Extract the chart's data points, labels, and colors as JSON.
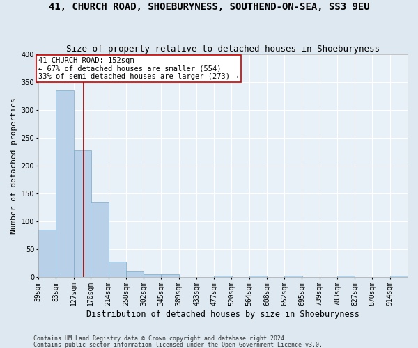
{
  "title": "41, CHURCH ROAD, SHOEBURYNESS, SOUTHEND-ON-SEA, SS3 9EU",
  "subtitle": "Size of property relative to detached houses in Shoeburyness",
  "xlabel": "Distribution of detached houses by size in Shoeburyness",
  "ylabel": "Number of detached properties",
  "footnote1": "Contains HM Land Registry data © Crown copyright and database right 2024.",
  "footnote2": "Contains public sector information licensed under the Open Government Licence v3.0.",
  "bins": [
    39,
    83,
    127,
    170,
    214,
    258,
    302,
    345,
    389,
    433,
    477,
    520,
    564,
    608,
    652,
    695,
    739,
    783,
    827,
    870,
    914
  ],
  "bin_labels": [
    "39sqm",
    "83sqm",
    "127sqm",
    "170sqm",
    "214sqm",
    "258sqm",
    "302sqm",
    "345sqm",
    "389sqm",
    "433sqm",
    "477sqm",
    "520sqm",
    "564sqm",
    "608sqm",
    "652sqm",
    "695sqm",
    "739sqm",
    "783sqm",
    "827sqm",
    "870sqm",
    "914sqm"
  ],
  "bar_heights": [
    85,
    335,
    228,
    135,
    28,
    10,
    5,
    5,
    0,
    0,
    3,
    0,
    3,
    0,
    3,
    0,
    0,
    3,
    0,
    0,
    3
  ],
  "bar_color": "#b8d0e8",
  "bar_edge_color": "#7aaac8",
  "property_line_x": 152,
  "property_line_color": "#8b0000",
  "annotation_text": "41 CHURCH ROAD: 152sqm\n← 67% of detached houses are smaller (554)\n33% of semi-detached houses are larger (273) →",
  "annotation_box_color": "#ffffff",
  "annotation_box_edgecolor": "#cc0000",
  "ylim": [
    0,
    400
  ],
  "yticks": [
    0,
    50,
    100,
    150,
    200,
    250,
    300,
    350,
    400
  ],
  "background_color": "#dde8f0",
  "plot_bg_color": "#e8f0f8",
  "grid_color": "#ffffff",
  "title_fontsize": 10,
  "subtitle_fontsize": 9,
  "ylabel_fontsize": 8,
  "xlabel_fontsize": 8.5,
  "tick_fontsize": 7,
  "annot_fontsize": 7.5,
  "footnote_fontsize": 6
}
